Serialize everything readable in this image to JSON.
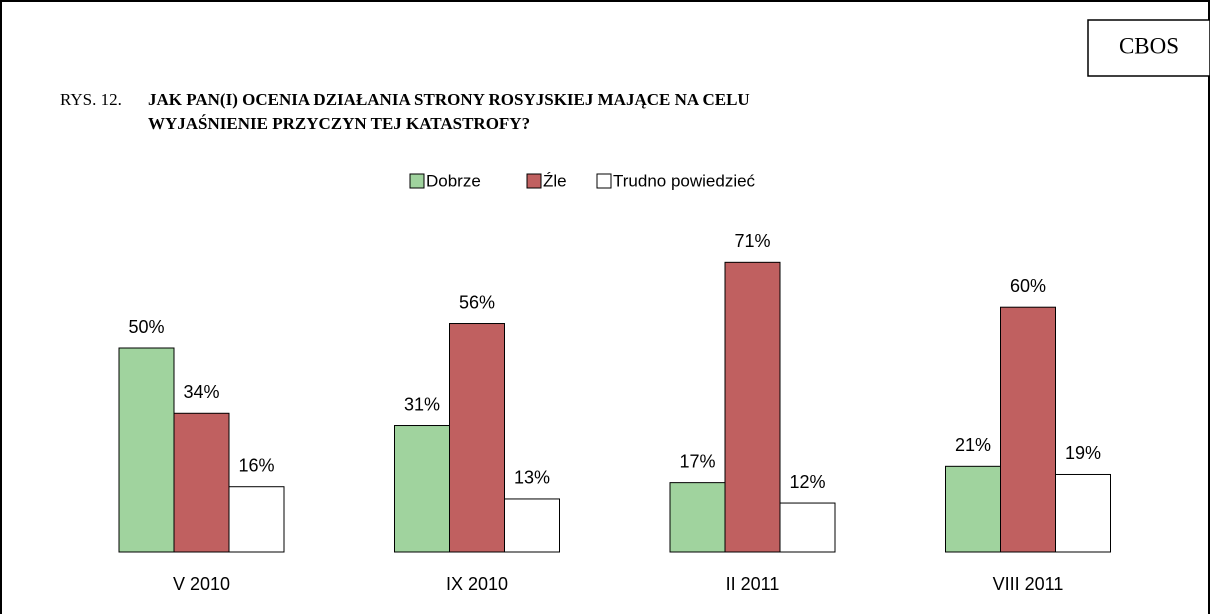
{
  "chart_data": {
    "type": "bar",
    "brand": "CBOS",
    "figure_label": "RYS. 12.",
    "title": [
      "JAK PAN(I) OCENIA DZIAŁANIA STRONY ROSYJSKIEJ MAJĄCE NA CELU",
      "WYJAŚNIENIE PRZYCZYN TEJ KATASTROFY?"
    ],
    "categories": [
      "V 2010",
      "IX 2010",
      "II 2011",
      "VIII 2011"
    ],
    "series": [
      {
        "name": "Dobrze",
        "color": "#a0d39e",
        "values": [
          50,
          31,
          17,
          21
        ],
        "value_labels": [
          "50%",
          "31%",
          "17%",
          "21%"
        ]
      },
      {
        "name": "Źle",
        "color": "#c06060",
        "values": [
          34,
          56,
          71,
          60
        ],
        "value_labels": [
          "34%",
          "56%",
          "71%",
          "60%"
        ]
      },
      {
        "name": "Trudno powiedzieć",
        "color": "#ffffff",
        "values": [
          16,
          13,
          12,
          19
        ],
        "value_labels": [
          "16%",
          "13%",
          "12%",
          "19%"
        ]
      }
    ],
    "legend": "top"
  }
}
